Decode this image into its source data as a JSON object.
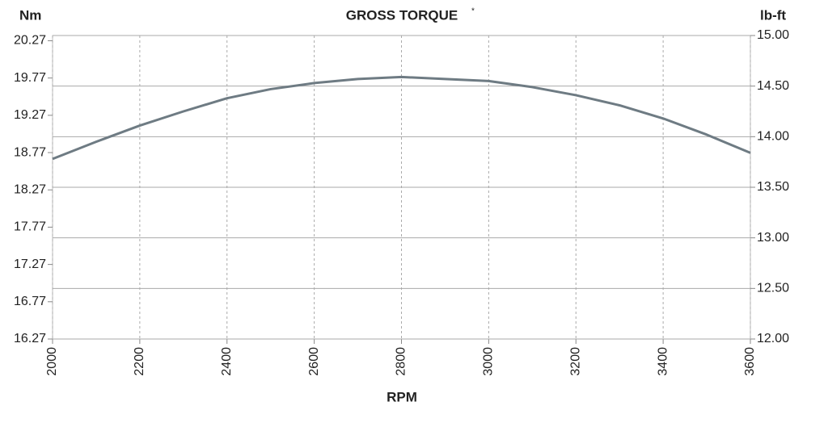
{
  "chart_data": {
    "type": "line",
    "title": "GROSS TORQUE",
    "title_note": "*",
    "y_label": "Nm",
    "y2_label": "lb-ft",
    "x_label": "RPM",
    "x": [
      2000,
      2100,
      2200,
      2300,
      2400,
      2500,
      2600,
      2700,
      2800,
      2900,
      3000,
      3100,
      3200,
      3300,
      3400,
      3500,
      3600
    ],
    "series": [
      {
        "name": "Gross torque",
        "color": "#6e7b83",
        "axis": "y2",
        "values": [
          13.78,
          13.95,
          14.11,
          14.25,
          14.38,
          14.47,
          14.53,
          14.57,
          14.59,
          14.57,
          14.55,
          14.49,
          14.41,
          14.31,
          14.18,
          14.02,
          13.84
        ]
      }
    ],
    "xlim": [
      2000,
      3600
    ],
    "xticks": [
      2000,
      2200,
      2400,
      2600,
      2800,
      3000,
      3200,
      3400,
      3600
    ],
    "ylim": [
      16.27,
      20.34
    ],
    "yticks": [
      16.27,
      16.77,
      17.27,
      17.77,
      18.27,
      18.77,
      19.27,
      19.77,
      20.27
    ],
    "y2lim": [
      12,
      15
    ],
    "y2ticks": [
      {
        "value": 12,
        "label": "12.00"
      },
      {
        "value": 12.5,
        "label": "12.50"
      },
      {
        "value": 13,
        "label": "13.00"
      },
      {
        "value": 13.5,
        "label": "13.50"
      },
      {
        "value": 14,
        "label": "14.00"
      },
      {
        "value": 14.5,
        "label": "14.50"
      },
      {
        "value": 15,
        "label": "15.00"
      }
    ],
    "grid": true
  }
}
